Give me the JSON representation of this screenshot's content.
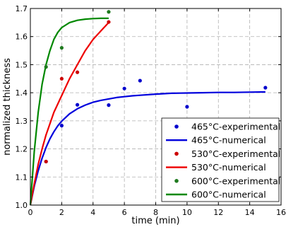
{
  "chart_data": {
    "type": "scatter",
    "title": "",
    "xlabel": "time (min)",
    "ylabel": "normalized thickness",
    "xlim": [
      0,
      16
    ],
    "ylim": [
      1.0,
      1.7
    ],
    "xticks": [
      0,
      2,
      4,
      6,
      8,
      10,
      12,
      14,
      16
    ],
    "xtick_labels": [
      "0",
      "2",
      "4",
      "6",
      "8",
      "10",
      "12",
      "14",
      "16"
    ],
    "yticks": [
      1.0,
      1.1,
      1.2,
      1.3,
      1.4,
      1.5,
      1.6,
      1.7
    ],
    "ytick_labels": [
      "1.0",
      "1.1",
      "1.2",
      "1.3",
      "1.4",
      "1.5",
      "1.6",
      "1.7"
    ],
    "grid": true,
    "legend_position": "bottom-right",
    "series": [
      {
        "name": "465°C-experimental",
        "kind": "scatter",
        "color": "#0000cc",
        "x": [
          1,
          2,
          3,
          5,
          6,
          7,
          10,
          15
        ],
        "y": [
          1.155,
          1.283,
          1.357,
          1.356,
          1.415,
          1.443,
          1.35,
          1.418
        ]
      },
      {
        "name": "465°C-numerical",
        "kind": "line",
        "color": "#0000dd",
        "x": [
          0,
          0.25,
          0.5,
          0.75,
          1,
          1.25,
          1.5,
          1.75,
          2,
          2.5,
          3,
          3.5,
          4,
          4.5,
          5,
          5.5,
          6,
          6.5,
          7,
          8,
          9,
          10,
          11,
          12,
          13,
          14,
          15
        ],
        "y": [
          1.0,
          1.067,
          1.122,
          1.167,
          1.205,
          1.236,
          1.261,
          1.282,
          1.299,
          1.325,
          1.343,
          1.356,
          1.366,
          1.373,
          1.378,
          1.383,
          1.386,
          1.389,
          1.391,
          1.395,
          1.398,
          1.399,
          1.4,
          1.401,
          1.401,
          1.402,
          1.403
        ]
      },
      {
        "name": "530°C-experimental",
        "kind": "scatter",
        "color": "#cc0000",
        "x": [
          1,
          2,
          3,
          5
        ],
        "y": [
          1.155,
          1.45,
          1.473,
          1.652
        ]
      },
      {
        "name": "530°C-numerical",
        "kind": "line",
        "color": "#ee0000",
        "x": [
          0,
          0.25,
          0.5,
          0.75,
          1,
          1.5,
          2,
          2.5,
          3,
          3.5,
          4,
          4.5,
          5
        ],
        "y": [
          1.0,
          1.075,
          1.145,
          1.2,
          1.25,
          1.33,
          1.39,
          1.45,
          1.5,
          1.55,
          1.59,
          1.62,
          1.65
        ]
      },
      {
        "name": "600°C-experimental",
        "kind": "scatter",
        "color": "#1f7a1f",
        "x": [
          1,
          2,
          5
        ],
        "y": [
          1.492,
          1.56,
          1.688
        ]
      },
      {
        "name": "600°C-numerical",
        "kind": "line",
        "color": "#008800",
        "x": [
          0,
          0.25,
          0.5,
          0.75,
          1,
          1.25,
          1.5,
          1.75,
          2,
          2.5,
          3,
          3.5,
          4,
          4.5,
          5
        ],
        "y": [
          1.0,
          1.19,
          1.33,
          1.43,
          1.5,
          1.55,
          1.59,
          1.615,
          1.632,
          1.65,
          1.658,
          1.662,
          1.664,
          1.665,
          1.665
        ]
      }
    ]
  }
}
